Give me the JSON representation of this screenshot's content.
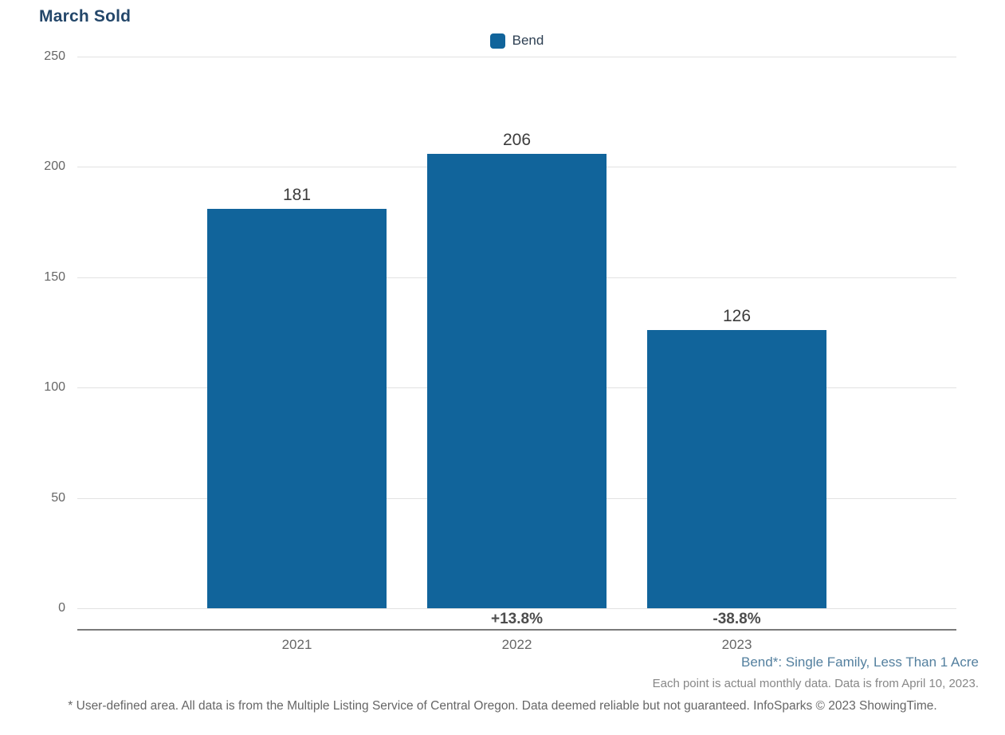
{
  "header": {
    "title": "March Sold"
  },
  "legend": {
    "items": [
      {
        "label": "Bend",
        "color": "#11649B"
      }
    ]
  },
  "chart_data": {
    "type": "bar",
    "title": "March Sold",
    "categories": [
      "2021",
      "2022",
      "2023"
    ],
    "series": [
      {
        "name": "Bend",
        "values": [
          181,
          206,
          126
        ]
      }
    ],
    "data_labels": [
      "181",
      "206",
      "126"
    ],
    "pct_change": [
      "",
      "+13.8%",
      "-38.8%"
    ],
    "y_ticks": [
      250,
      200,
      150,
      100,
      50,
      0
    ],
    "ylim": [
      0,
      250
    ],
    "xlabel": "",
    "ylabel": "",
    "grid": "horizontal",
    "legend_position": "top-center",
    "bar_color": "#11649B"
  },
  "footnotes": {
    "series_note": "Bend*: Single Family, Less Than 1 Acre",
    "data_note": "Each point is actual monthly data. Data is from April 10, 2023.",
    "disclaimer": "* User-defined area. All data is from the Multiple Listing Service of Central Oregon. Data deemed reliable but not guaranteed. InfoSparks © 2023 ShowingTime."
  },
  "colors": {
    "bar": "#11649B",
    "title": "#24476A",
    "series_note": "#54809F",
    "gridline": "#E2E2E2",
    "axis_line": "#7A7A7A",
    "tick_label": "#666666",
    "value_label": "#3C3C3C",
    "pct_label": "#4D4D4D"
  }
}
